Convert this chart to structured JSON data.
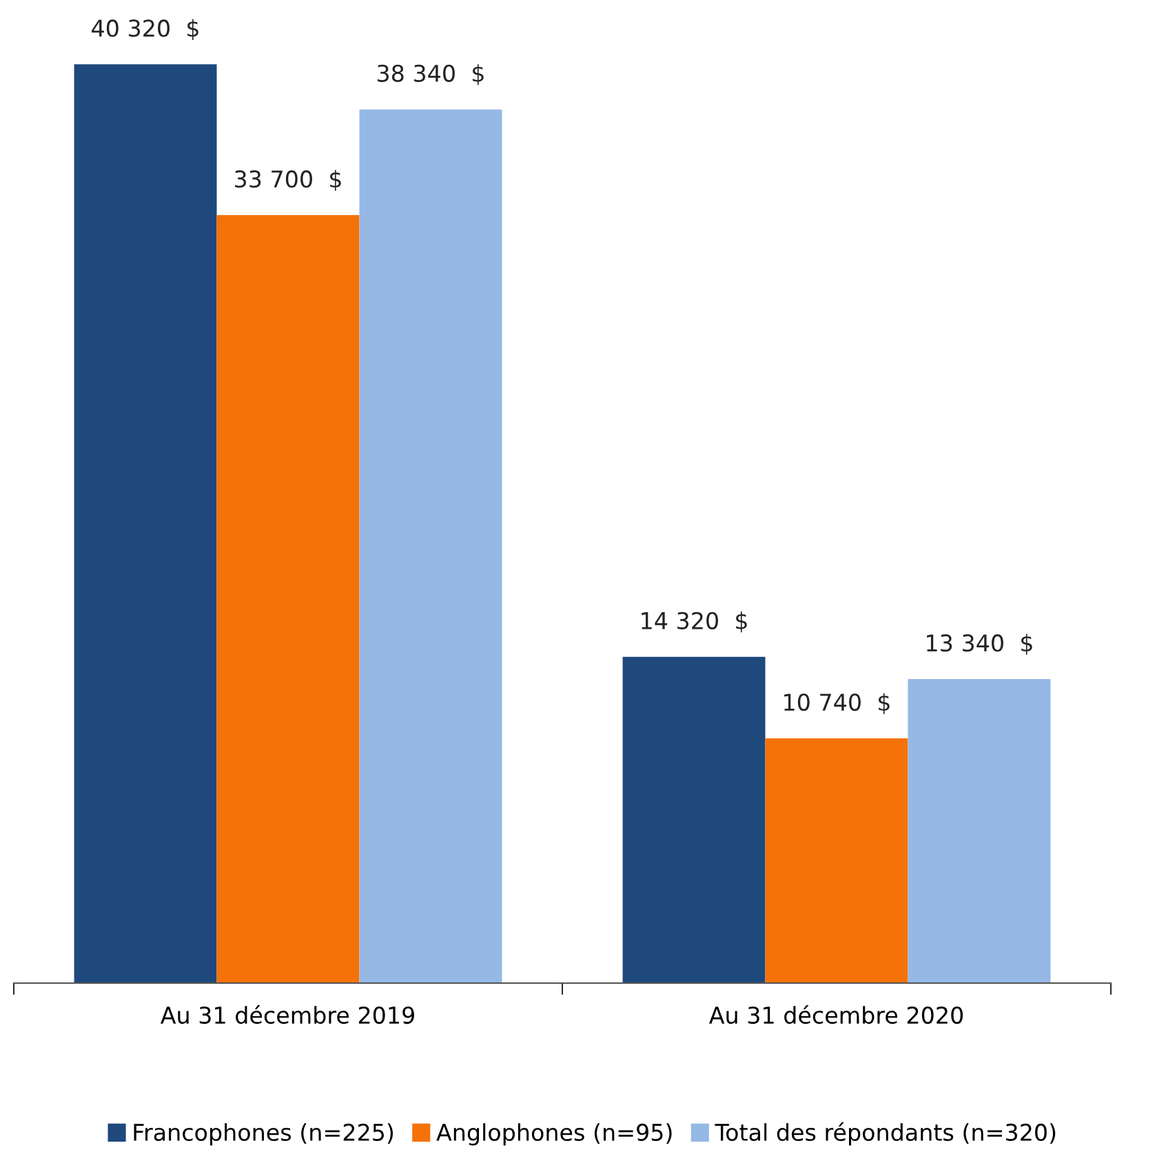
{
  "chart_data": {
    "type": "bar",
    "categories": [
      "Au 31 décembre 2019",
      "Au 31 décembre 2020"
    ],
    "series": [
      {
        "name": "Francophones (n=225)",
        "color": "#1f497d",
        "values": [
          40320,
          14320
        ],
        "value_labels": [
          "40 320  $",
          "14 320  $"
        ]
      },
      {
        "name": "Anglophones (n=95)",
        "color": "#f57208",
        "values": [
          33700,
          10740
        ],
        "value_labels": [
          "33 700  $",
          "10 740  $"
        ]
      },
      {
        "name": "Total des répondants (n=320)",
        "color": "#95b8e5",
        "values": [
          38340,
          13340
        ],
        "value_labels": [
          "38 340  $",
          "13 340  $"
        ]
      }
    ],
    "legend": "bottom",
    "tick_labels": "x",
    "grid": false
  }
}
